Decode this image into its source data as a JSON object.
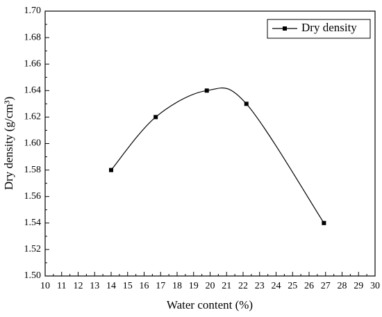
{
  "chart_data": {
    "type": "line",
    "x_label": "Water content (%)",
    "y_label": "Dry density (g/cm³)",
    "x": [
      14,
      16.7,
      19.8,
      22.2,
      26.9
    ],
    "series": [
      {
        "name": "Dry density",
        "color": "#000000",
        "values": [
          1.58,
          1.62,
          1.64,
          1.63,
          1.54
        ]
      }
    ],
    "xlim": [
      10,
      30
    ],
    "xticks": [
      10,
      11,
      12,
      13,
      14,
      15,
      16,
      17,
      18,
      19,
      20,
      21,
      22,
      23,
      24,
      25,
      26,
      27,
      28,
      29,
      30
    ],
    "ylim": [
      1.5,
      1.7
    ],
    "yticks": [
      {
        "value": 1.5,
        "label": "1.50"
      },
      {
        "value": 1.52,
        "label": "1.52"
      },
      {
        "value": 1.54,
        "label": "1.54"
      },
      {
        "value": 1.56,
        "label": "1.56"
      },
      {
        "value": 1.58,
        "label": "1.58"
      },
      {
        "value": 1.6,
        "label": "1.60"
      },
      {
        "value": 1.62,
        "label": "1.62"
      },
      {
        "value": 1.64,
        "label": "1.64"
      },
      {
        "value": 1.66,
        "label": "1.66"
      },
      {
        "value": 1.68,
        "label": "1.68"
      },
      {
        "value": 1.7,
        "label": "1.70"
      }
    ],
    "smooth": true,
    "legend": "upper right"
  }
}
